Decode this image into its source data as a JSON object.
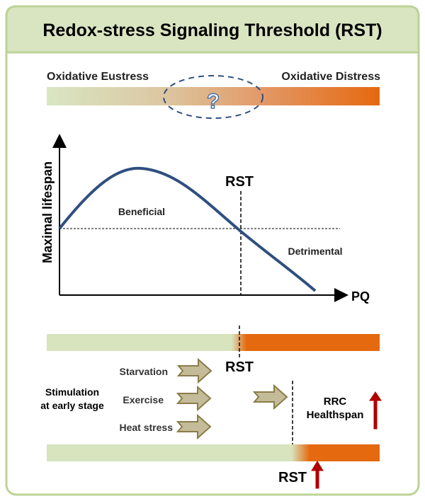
{
  "title": "Redox-stress Signaling Threshold (RST)",
  "spectrum": {
    "left_label": "Oxidative Eustress",
    "right_label": "Oxidative Distress",
    "unknown_mark": "?"
  },
  "plot": {
    "y_label": "Maximal lifespan",
    "x_label": "PQ",
    "threshold_label": "RST",
    "region_left": "Beneficial",
    "region_right": "Detrimental"
  },
  "lower": {
    "threshold_label_1": "RST",
    "threshold_label_2": "RST",
    "stimulation_line1": "Stimulation",
    "stimulation_line2": "at early stage",
    "stimuli": [
      "Starvation",
      "Exercise",
      "Heat stress"
    ],
    "outcome_line1": "RRC",
    "outcome_line2": "Healthspan"
  },
  "colors": {
    "green": "#d7e4be",
    "orange": "#e4690f",
    "curve": "#2f4f7f",
    "border": "#bcd397",
    "arrow_fill": "#c4bc98",
    "arrow_stroke": "#8a7d4a",
    "up_arrow": "#b00000"
  }
}
